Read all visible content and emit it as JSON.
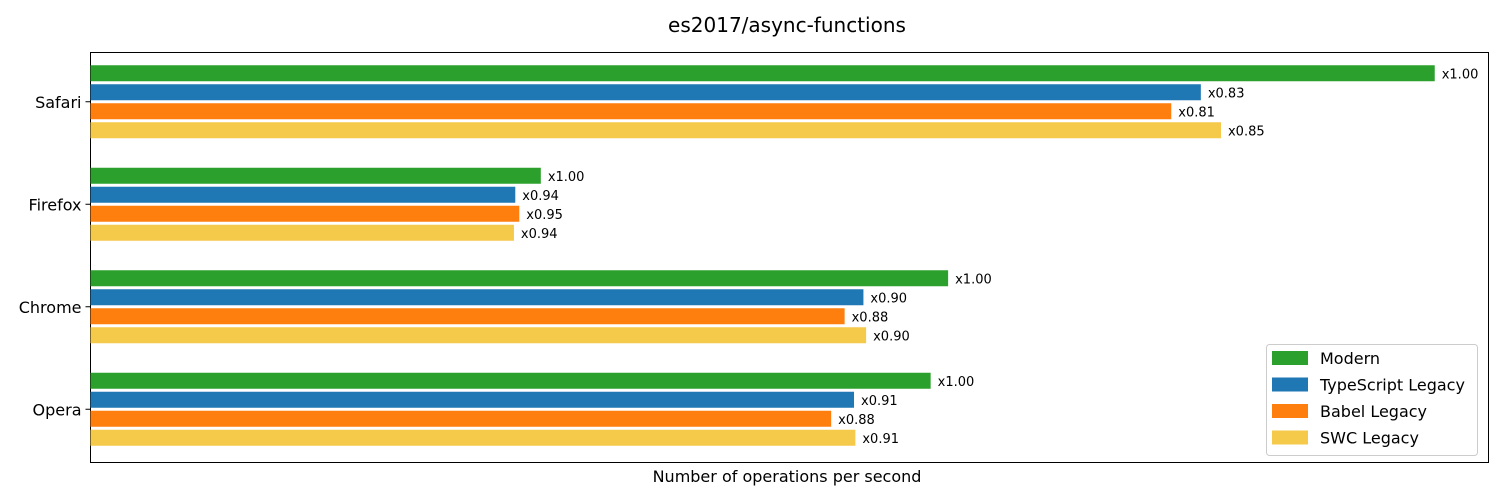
{
  "chart_data": {
    "type": "bar",
    "orientation": "horizontal",
    "title": "es2017/async-functions",
    "xlabel": "Number of operations per second",
    "ylabel": "",
    "categories": [
      "Safari",
      "Firefox",
      "Chrome",
      "Opera"
    ],
    "xlim": [
      0,
      1.04
    ],
    "grid": false,
    "legend_position": "bottom-right",
    "value_label_prefix": "x",
    "series": [
      {
        "name": "Modern",
        "color": "#2ca02c",
        "values": [
          1.0,
          0.335,
          0.638,
          0.625
        ],
        "labels": [
          "x1.00",
          "x1.00",
          "x1.00",
          "x1.00"
        ]
      },
      {
        "name": "TypeScript Legacy",
        "color": "#1f77b4",
        "values": [
          0.826,
          0.316,
          0.575,
          0.568
        ],
        "labels": [
          "x0.83",
          "x0.94",
          "x0.90",
          "x0.91"
        ]
      },
      {
        "name": "Babel Legacy",
        "color": "#ff7f0e",
        "values": [
          0.804,
          0.319,
          0.561,
          0.551
        ],
        "labels": [
          "x0.81",
          "x0.95",
          "x0.88",
          "x0.88"
        ]
      },
      {
        "name": "SWC Legacy",
        "color": "#f5c94a",
        "values": [
          0.841,
          0.315,
          0.577,
          0.569
        ],
        "labels": [
          "x0.85",
          "x0.94",
          "x0.90",
          "x0.91"
        ]
      }
    ]
  }
}
